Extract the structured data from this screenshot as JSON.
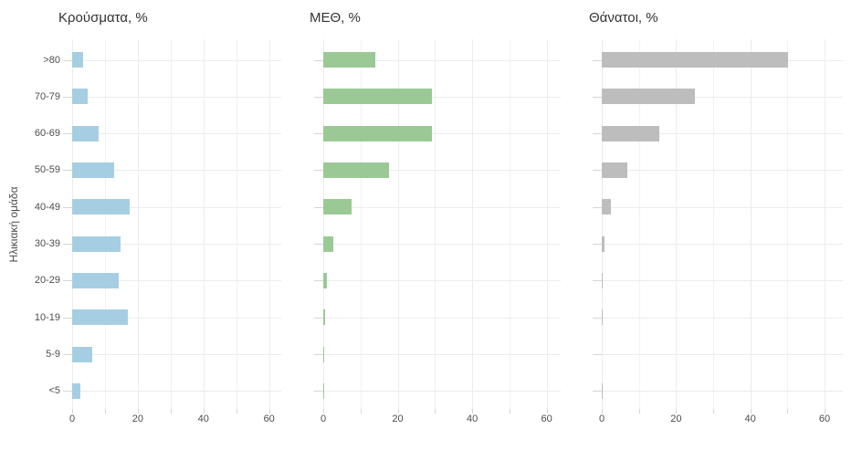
{
  "figure": {
    "y_axis_title": "Ηλικιακή ομάδα",
    "background": "#ffffff",
    "grid_color": "#ececec",
    "tick_mark_color": "#d6d6d6",
    "axis_text_color": "#4d4d4d",
    "title_color": "#333333"
  },
  "chart_data": [
    {
      "type": "bar",
      "orientation": "horizontal",
      "title": "Κρούσματα, %",
      "bar_color": "#a6cee3",
      "categories": [
        ">80",
        "70-79",
        "60-69",
        "50-59",
        "40-49",
        "30-39",
        "20-29",
        "10-19",
        "5-9",
        "<5"
      ],
      "values": [
        3.2,
        4.8,
        8.0,
        12.9,
        17.4,
        14.8,
        14.3,
        17.1,
        6.0,
        2.6
      ],
      "xlabel": "",
      "ylabel": "Ηλικιακή ομάδα",
      "xlim": [
        0,
        64
      ],
      "xticks": [
        0,
        20,
        40,
        60
      ],
      "xminor": [
        10,
        30,
        50
      ],
      "grid": "on",
      "legend": "none"
    },
    {
      "type": "bar",
      "orientation": "horizontal",
      "title": "ΜΕΘ, %",
      "bar_color": "#9bc995",
      "categories": [
        ">80",
        "70-79",
        "60-69",
        "50-59",
        "40-49",
        "30-39",
        "20-29",
        "10-19",
        "5-9",
        "<5"
      ],
      "values": [
        13.9,
        29.1,
        29.1,
        17.6,
        7.5,
        2.7,
        1.0,
        0.6,
        0.2,
        0.2
      ],
      "xlabel": "",
      "ylabel": "Ηλικιακή ομάδα",
      "xlim": [
        0,
        64
      ],
      "xticks": [
        0,
        20,
        40,
        60
      ],
      "xminor": [
        10,
        30,
        50
      ],
      "grid": "on",
      "legend": "none"
    },
    {
      "type": "bar",
      "orientation": "horizontal",
      "title": "Θάνατοι, %",
      "bar_color": "#bdbdbd",
      "categories": [
        ">80",
        "70-79",
        "60-69",
        "50-59",
        "40-49",
        "30-39",
        "20-29",
        "10-19",
        "5-9",
        "<5"
      ],
      "values": [
        50.2,
        25.0,
        15.5,
        6.9,
        2.5,
        0.7,
        0.2,
        0.1,
        0.0,
        0.1
      ],
      "xlabel": "",
      "ylabel": "Ηλικιακή ομάδα",
      "xlim": [
        0,
        64
      ],
      "xticks": [
        0,
        20,
        40,
        60
      ],
      "xminor": [
        10,
        30,
        50
      ],
      "grid": "on",
      "legend": "none"
    }
  ]
}
